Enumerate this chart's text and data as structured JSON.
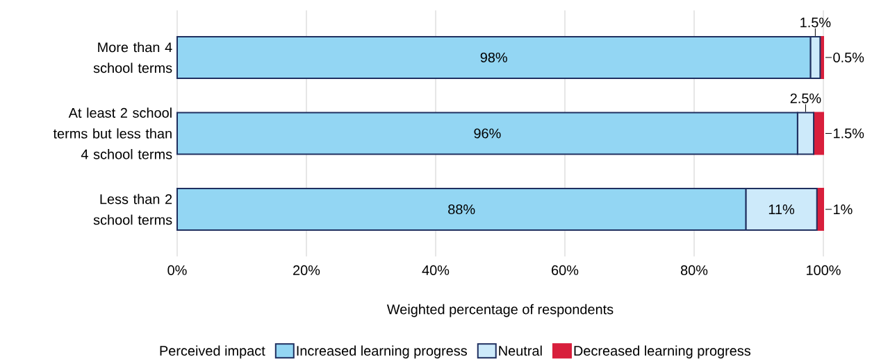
{
  "chart_data": {
    "type": "bar",
    "orientation": "horizontal",
    "stacked": true,
    "categories": [
      "More than 4 school terms",
      "At least 2 school terms but less than 4 school terms",
      "Less than 2 school terms"
    ],
    "series": [
      {
        "name": "Increased learning progress",
        "color": "#93d6f3",
        "values": [
          98,
          96,
          88
        ],
        "value_labels": [
          "98%",
          "96%",
          "88%"
        ]
      },
      {
        "name": "Neutral",
        "color": "#cdeafa",
        "values": [
          1.5,
          2.5,
          11
        ],
        "value_labels": [
          "1.5%",
          "2.5%",
          "11%"
        ]
      },
      {
        "name": "Decreased learning progress",
        "color": "#d81f3c",
        "values": [
          0.5,
          1.5,
          1
        ],
        "value_labels": [
          "0.5%",
          "1.5%",
          "1%"
        ]
      }
    ],
    "xlabel": "Weighted percentage of respondents",
    "xlim": [
      0,
      100
    ],
    "xticks": [
      {
        "value": 0,
        "label": "0%"
      },
      {
        "value": 20,
        "label": "20%"
      },
      {
        "value": 40,
        "label": "40%"
      },
      {
        "value": 60,
        "label": "60%"
      },
      {
        "value": 80,
        "label": "80%"
      },
      {
        "value": 100,
        "label": "100%"
      }
    ],
    "grid": "x",
    "legend": "bottom",
    "legend_title": "Perceived impact"
  }
}
